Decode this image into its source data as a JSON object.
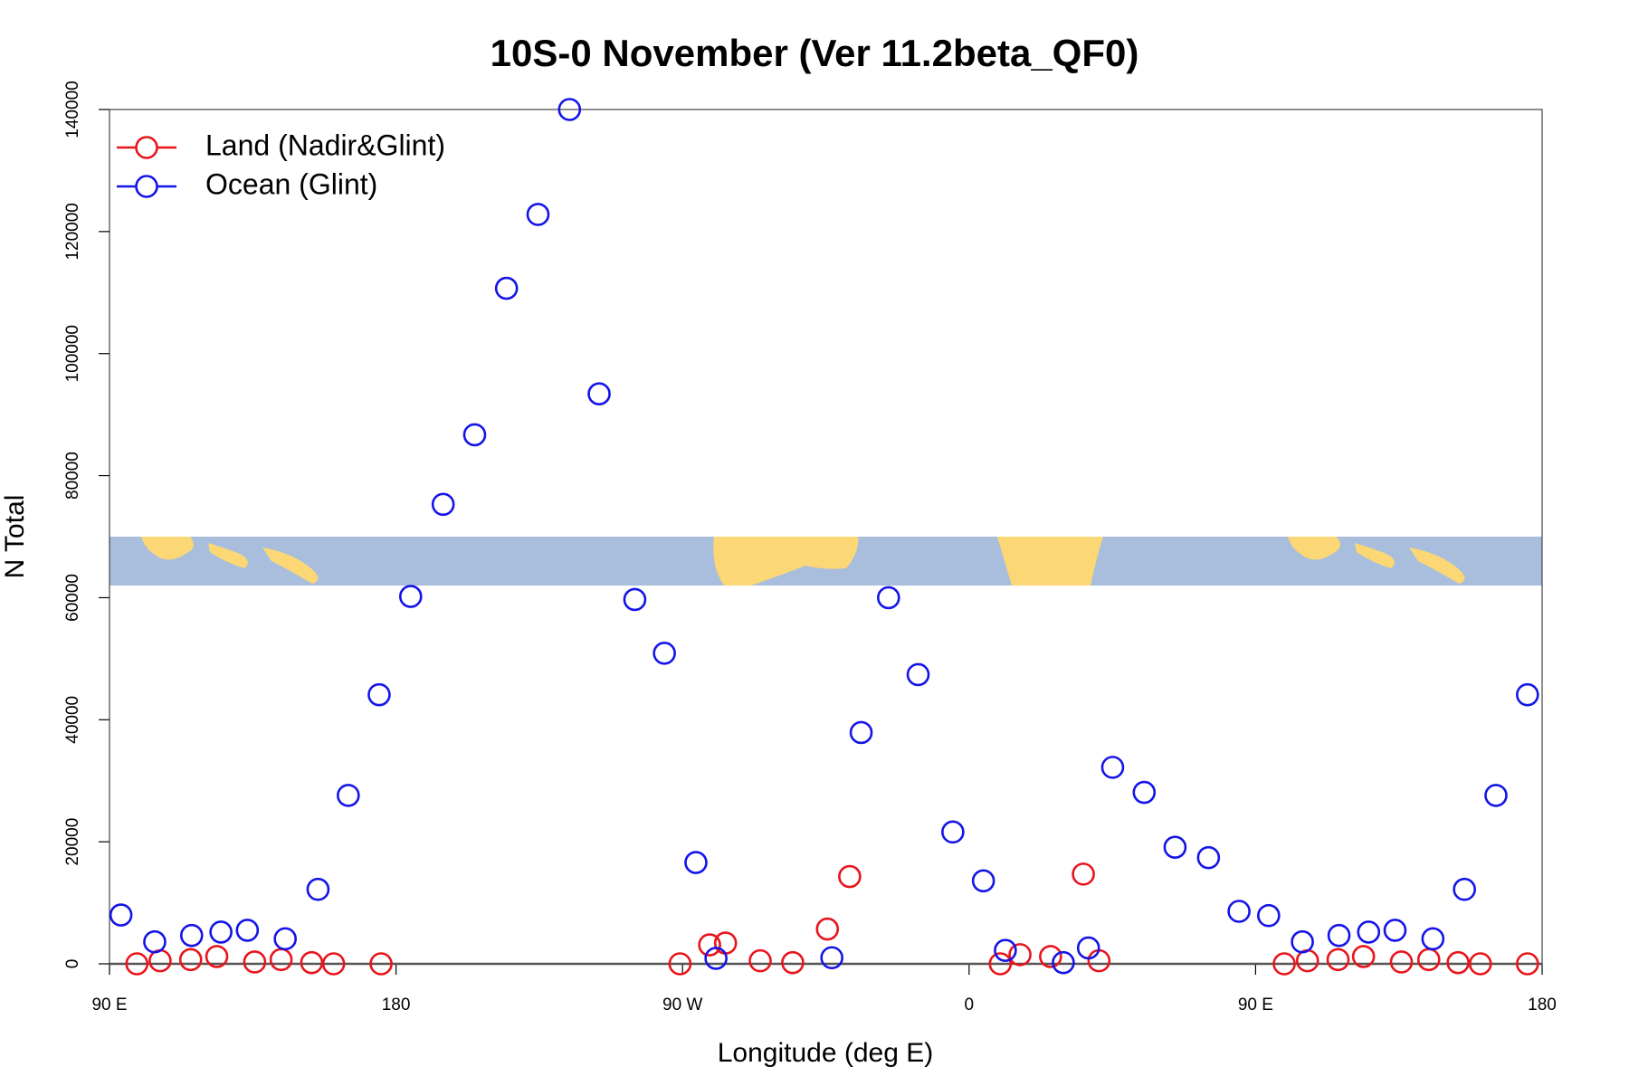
{
  "chart_data": {
    "type": "scatter",
    "title": "10S-0 November (Ver 11.2beta_QF0)",
    "x_label": "Longitude (deg E)",
    "y_label": "N Total",
    "xlim": [
      90,
      540
    ],
    "xticks": [
      {
        "value": 90,
        "label": "90 E"
      },
      {
        "value": 180,
        "label": "180"
      },
      {
        "value": 270,
        "label": "90 W"
      },
      {
        "value": 360,
        "label": "0"
      },
      {
        "value": 450,
        "label": "90 E"
      },
      {
        "value": 540,
        "label": "180"
      }
    ],
    "ylim": [
      0,
      140000
    ],
    "yticks": [
      0,
      20000,
      40000,
      60000,
      80000,
      100000,
      120000,
      140000
    ],
    "legend": "top-left",
    "series": [
      {
        "name": "Land (Nadir&Glint)",
        "color": "#e8141c",
        "x": [
          98.6,
          105.9,
          115.5,
          123.7,
          135.6,
          143.9,
          153.5,
          160.4,
          175.3,
          269.2,
          278.5,
          283.5,
          294.4,
          304.6,
          315.5,
          322.5,
          369.8,
          376.0,
          385.6,
          395.9,
          400.8,
          459,
          466.3,
          475.9,
          483.9,
          495.8,
          504.4,
          513.6,
          520.6,
          535.4
        ],
        "values": [
          0,
          500,
          700,
          1200,
          300,
          700,
          200,
          0,
          0,
          0,
          3100,
          3400,
          500,
          200,
          5700,
          14300,
          0,
          1500,
          1200,
          14700,
          500,
          0,
          500,
          700,
          1200,
          300,
          700,
          200,
          0,
          0
        ]
      },
      {
        "name": "Ocean (Glint)",
        "color": "#1414e8",
        "x": [
          93.6,
          104.2,
          115.8,
          125,
          133.3,
          145.2,
          155.5,
          165,
          174.7,
          184.6,
          194.8,
          204.7,
          214.7,
          224.6,
          234.5,
          243.8,
          255,
          264.3,
          274.2,
          280.5,
          316.9,
          326.1,
          334.7,
          344,
          354.9,
          364.5,
          371.4,
          389.6,
          397.5,
          405.1,
          415,
          424.7,
          435.2,
          444.8,
          454.1,
          464.7,
          476.2,
          485.5,
          493.8,
          505.7,
          515.6,
          525.5,
          535.4
        ],
        "values": [
          8000,
          3600,
          4650,
          5200,
          5500,
          4100,
          12200,
          27600,
          44100,
          60200,
          75300,
          86700,
          110700,
          122800,
          140000,
          93400,
          59700,
          50900,
          16600,
          900,
          1000,
          37900,
          60000,
          47400,
          21600,
          13600,
          2200,
          200,
          2600,
          32200,
          28100,
          19100,
          17400,
          8600,
          7900,
          3600,
          4650,
          5200,
          5500,
          4100,
          12200,
          27600,
          44100
        ]
      }
    ]
  }
}
